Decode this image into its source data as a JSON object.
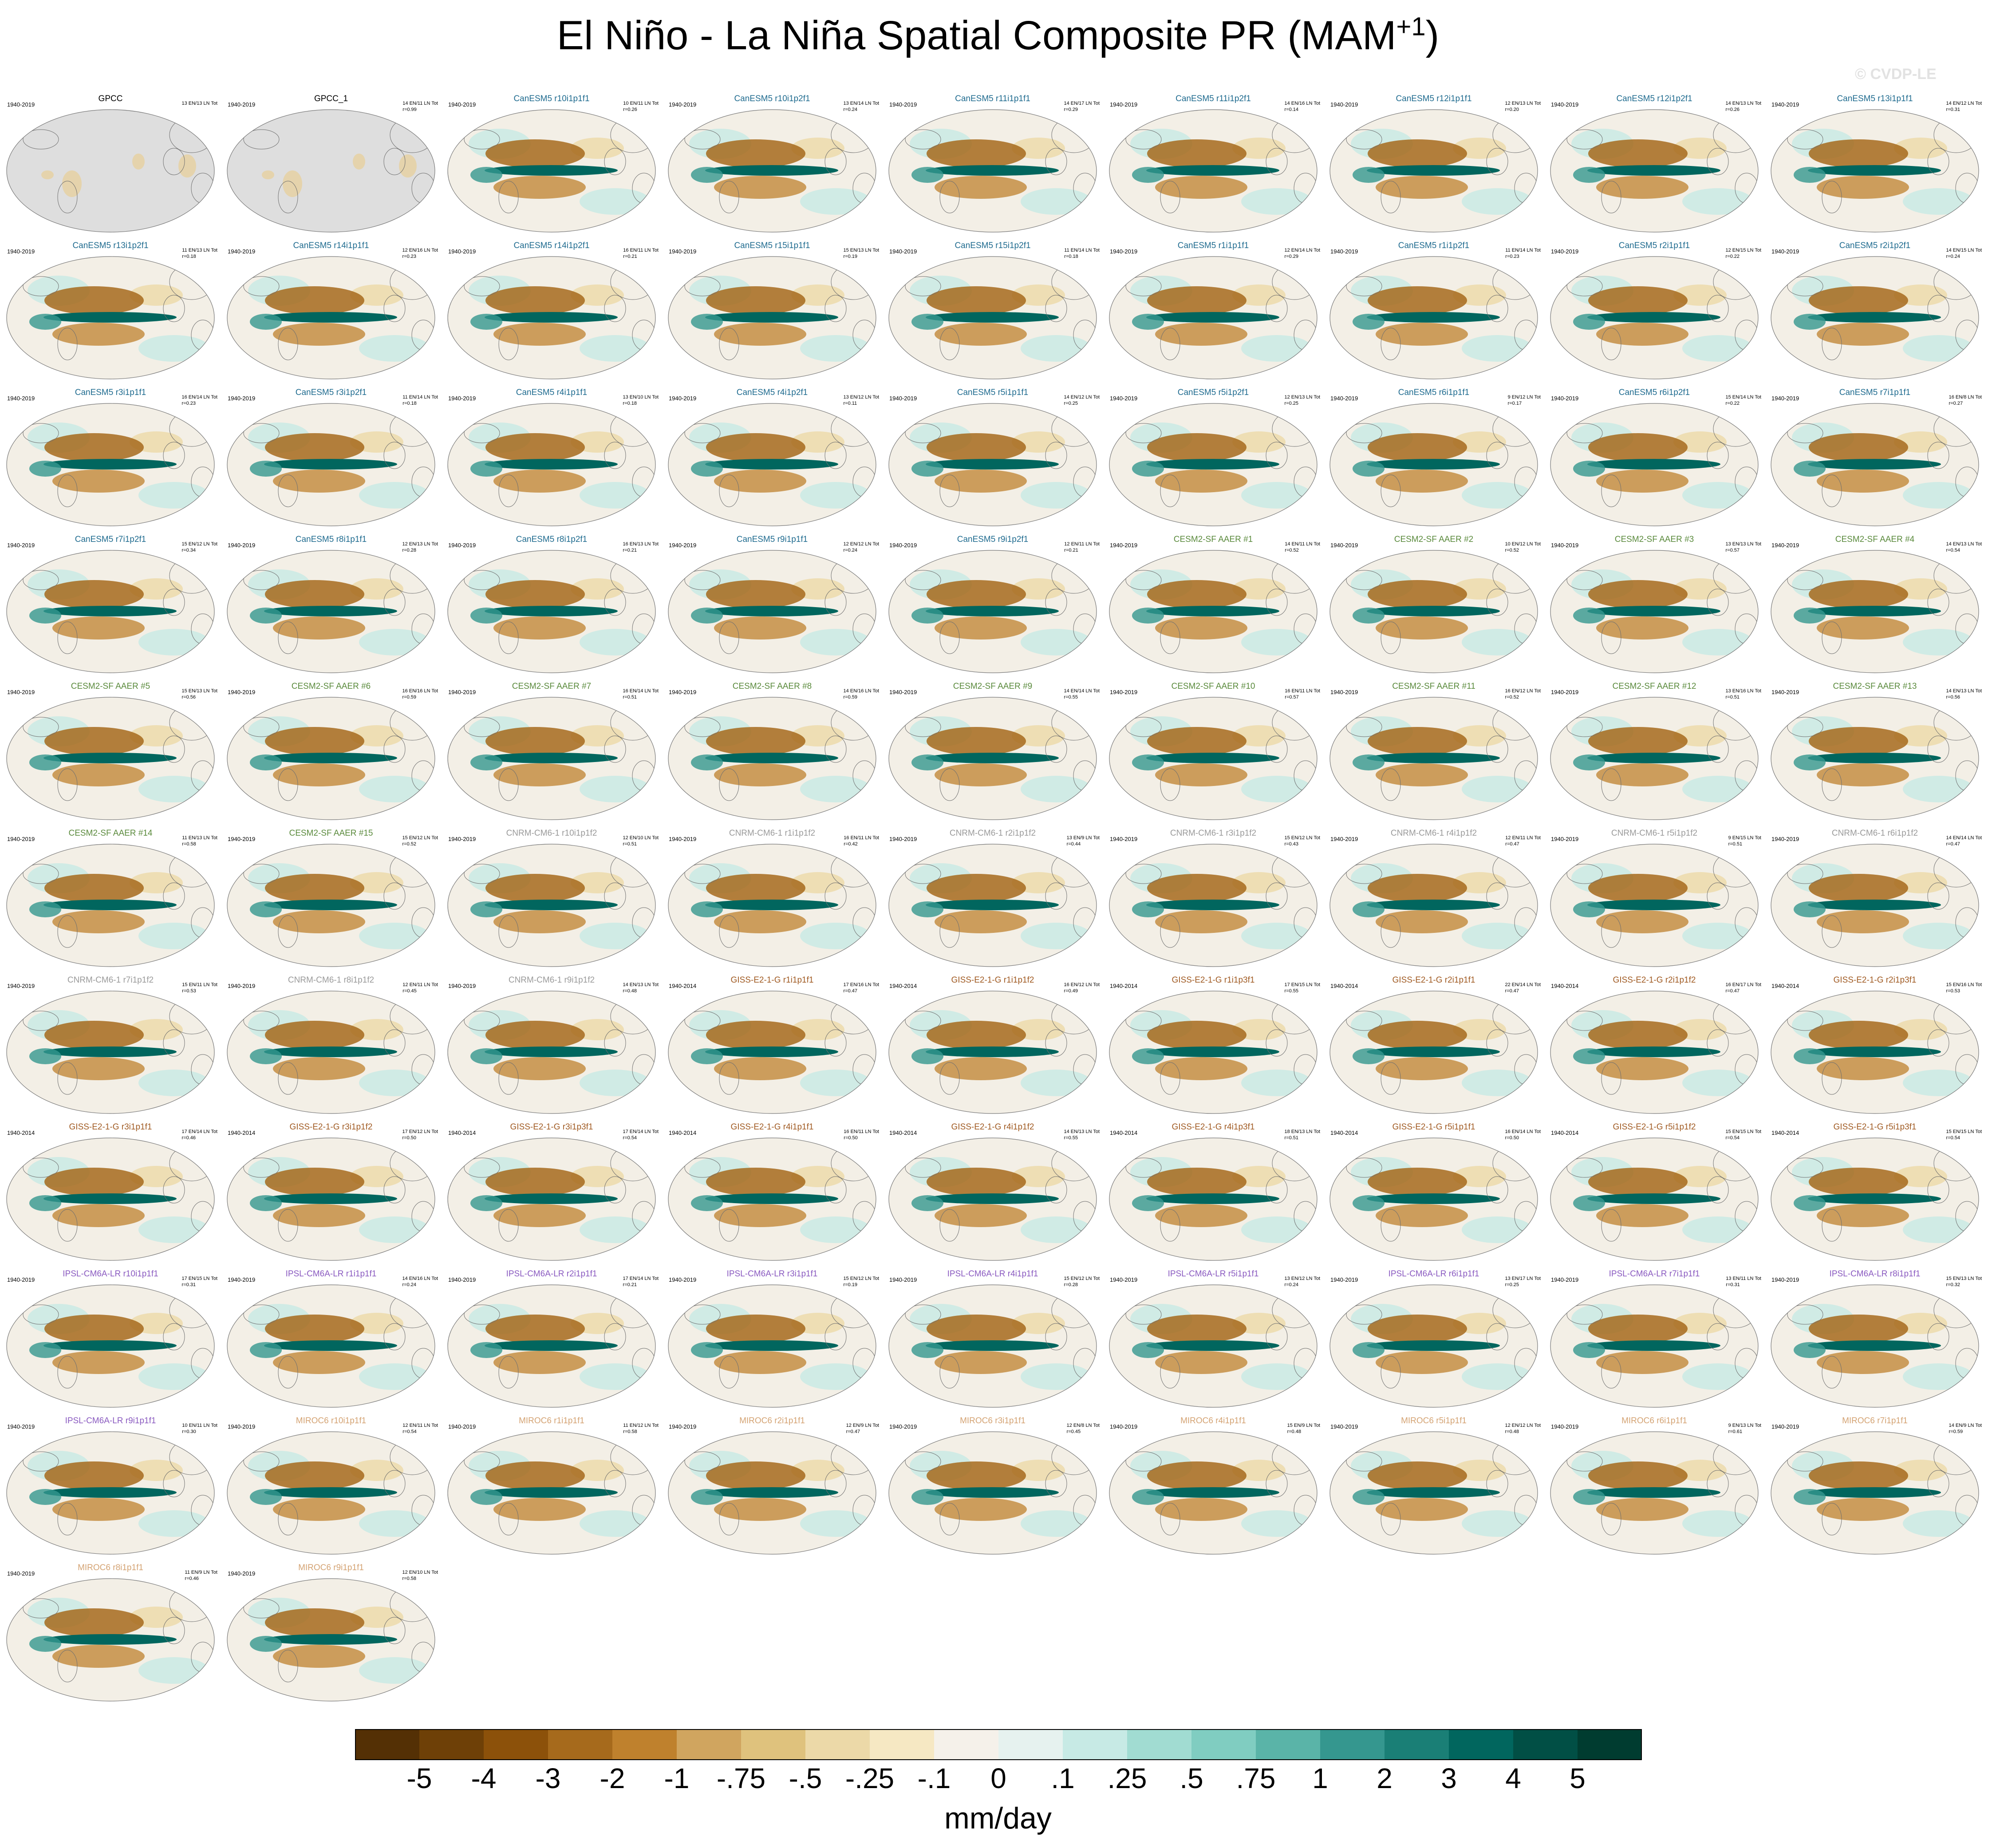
{
  "title": "El Niño - La Niña Spatial Composite PR (MAM",
  "title_sup": "+1",
  "title_end": ")",
  "watermark": "© CVDP-LE",
  "colors": {
    "GPCC": "#000000",
    "CanESM5": "#1f6b8f",
    "CESM2": "#5a8a3c",
    "CNRM": "#9a9a9a",
    "GISS": "#a05a22",
    "IPSL": "#8a5ac0",
    "MIROC6": "#d4a373"
  },
  "chart_data": {
    "type": "heatmap",
    "title": "El Niño - La Niña Spatial Composite PR (MAM+1)",
    "colorbar": {
      "labels": [
        "-5",
        "-4",
        "-3",
        "-2",
        "-1",
        "-.75",
        "-.5",
        "-.25",
        "-.1",
        "0",
        ".1",
        ".25",
        ".5",
        ".75",
        "1",
        "2",
        "3",
        "4",
        "5"
      ],
      "colors": [
        "#543005",
        "#6e4007",
        "#8c510a",
        "#a66a1c",
        "#bf812d",
        "#d0a55f",
        "#dfc27d",
        "#ecd9a8",
        "#f6e8c3",
        "#f5f1ea",
        "#e6f2ef",
        "#c7eae5",
        "#a1dcd2",
        "#80cdc1",
        "#5ab4a8",
        "#35978f",
        "#1a7f76",
        "#01665e",
        "#014f45",
        "#003c30"
      ],
      "units": "mm/day"
    },
    "panels": [
      {
        "title": "GPCC",
        "period": "1940-2019",
        "stats": [
          "13 EN/13 LN Tot",
          ""
        ],
        "group": "GPCC"
      },
      {
        "title": "GPCC_1",
        "period": "1940-2019",
        "stats": [
          "14 EN/11 LN Tot",
          "r=0.99"
        ],
        "group": "GPCC"
      },
      {
        "title": "CanESM5 r10i1p1f1",
        "period": "1940-2019",
        "stats": [
          "10 EN/11 LN Tot",
          "r=0.26"
        ],
        "group": "CanESM5"
      },
      {
        "title": "CanESM5 r10i1p2f1",
        "period": "1940-2019",
        "stats": [
          "13 EN/14 LN Tot",
          "r=0.24"
        ],
        "group": "CanESM5"
      },
      {
        "title": "CanESM5 r11i1p1f1",
        "period": "1940-2019",
        "stats": [
          "14 EN/17 LN Tot",
          "r=0.29"
        ],
        "group": "CanESM5"
      },
      {
        "title": "CanESM5 r11i1p2f1",
        "period": "1940-2019",
        "stats": [
          "14 EN/16 LN Tot",
          "r=0.14"
        ],
        "group": "CanESM5"
      },
      {
        "title": "CanESM5 r12i1p1f1",
        "period": "1940-2019",
        "stats": [
          "12 EN/13 LN Tot",
          "r=0.20"
        ],
        "group": "CanESM5"
      },
      {
        "title": "CanESM5 r12i1p2f1",
        "period": "1940-2019",
        "stats": [
          "14 EN/13 LN Tot",
          "r=0.26"
        ],
        "group": "CanESM5"
      },
      {
        "title": "CanESM5 r13i1p1f1",
        "period": "1940-2019",
        "stats": [
          "14 EN/12 LN Tot",
          "r=0.31"
        ],
        "group": "CanESM5"
      },
      {
        "title": "CanESM5 r13i1p2f1",
        "period": "1940-2019",
        "stats": [
          "11 EN/13 LN Tot",
          "r=0.18"
        ],
        "group": "CanESM5"
      },
      {
        "title": "CanESM5 r14i1p1f1",
        "period": "1940-2019",
        "stats": [
          "12 EN/16 LN Tot",
          "r=0.23"
        ],
        "group": "CanESM5"
      },
      {
        "title": "CanESM5 r14i1p2f1",
        "period": "1940-2019",
        "stats": [
          "16 EN/11 LN Tot",
          "r=0.21"
        ],
        "group": "CanESM5"
      },
      {
        "title": "CanESM5 r15i1p1f1",
        "period": "1940-2019",
        "stats": [
          "15 EN/13 LN Tot",
          "r=0.19"
        ],
        "group": "CanESM5"
      },
      {
        "title": "CanESM5 r15i1p2f1",
        "period": "1940-2019",
        "stats": [
          "11 EN/14 LN Tot",
          "r=0.18"
        ],
        "group": "CanESM5"
      },
      {
        "title": "CanESM5 r1i1p1f1",
        "period": "1940-2019",
        "stats": [
          "12 EN/14 LN Tot",
          "r=0.29"
        ],
        "group": "CanESM5"
      },
      {
        "title": "CanESM5 r1i1p2f1",
        "period": "1940-2019",
        "stats": [
          "11 EN/14 LN Tot",
          "r=0.23"
        ],
        "group": "CanESM5"
      },
      {
        "title": "CanESM5 r2i1p1f1",
        "period": "1940-2019",
        "stats": [
          "12 EN/15 LN Tot",
          "r=0.22"
        ],
        "group": "CanESM5"
      },
      {
        "title": "CanESM5 r2i1p2f1",
        "period": "1940-2019",
        "stats": [
          "14 EN/15 LN Tot",
          "r=0.24"
        ],
        "group": "CanESM5"
      },
      {
        "title": "CanESM5 r3i1p1f1",
        "period": "1940-2019",
        "stats": [
          "16 EN/14 LN Tot",
          "r=0.23"
        ],
        "group": "CanESM5"
      },
      {
        "title": "CanESM5 r3i1p2f1",
        "period": "1940-2019",
        "stats": [
          "11 EN/14 LN Tot",
          "r=0.18"
        ],
        "group": "CanESM5"
      },
      {
        "title": "CanESM5 r4i1p1f1",
        "period": "1940-2019",
        "stats": [
          "13 EN/10 LN Tot",
          "r=0.18"
        ],
        "group": "CanESM5"
      },
      {
        "title": "CanESM5 r4i1p2f1",
        "period": "1940-2019",
        "stats": [
          "13 EN/12 LN Tot",
          "r=0.11"
        ],
        "group": "CanESM5"
      },
      {
        "title": "CanESM5 r5i1p1f1",
        "period": "1940-2019",
        "stats": [
          "14 EN/12 LN Tot",
          "r=0.25"
        ],
        "group": "CanESM5"
      },
      {
        "title": "CanESM5 r5i1p2f1",
        "period": "1940-2019",
        "stats": [
          "12 EN/13 LN Tot",
          "r=0.25"
        ],
        "group": "CanESM5"
      },
      {
        "title": "CanESM5 r6i1p1f1",
        "period": "1940-2019",
        "stats": [
          "9 EN/12 LN Tot",
          "r=0.17"
        ],
        "group": "CanESM5"
      },
      {
        "title": "CanESM5 r6i1p2f1",
        "period": "1940-2019",
        "stats": [
          "15 EN/14 LN Tot",
          "r=0.22"
        ],
        "group": "CanESM5"
      },
      {
        "title": "CanESM5 r7i1p1f1",
        "period": "1940-2019",
        "stats": [
          "16 EN/8 LN Tot",
          "r=0.27"
        ],
        "group": "CanESM5"
      },
      {
        "title": "CanESM5 r7i1p2f1",
        "period": "1940-2019",
        "stats": [
          "15 EN/12 LN Tot",
          "r=0.34"
        ],
        "group": "CanESM5"
      },
      {
        "title": "CanESM5 r8i1p1f1",
        "period": "1940-2019",
        "stats": [
          "12 EN/13 LN Tot",
          "r=0.28"
        ],
        "group": "CanESM5"
      },
      {
        "title": "CanESM5 r8i1p2f1",
        "period": "1940-2019",
        "stats": [
          "16 EN/13 LN Tot",
          "r=0.21"
        ],
        "group": "CanESM5"
      },
      {
        "title": "CanESM5 r9i1p1f1",
        "period": "1940-2019",
        "stats": [
          "12 EN/12 LN Tot",
          "r=0.24"
        ],
        "group": "CanESM5"
      },
      {
        "title": "CanESM5 r9i1p2f1",
        "period": "1940-2019",
        "stats": [
          "12 EN/11 LN Tot",
          "r=0.21"
        ],
        "group": "CanESM5"
      },
      {
        "title": "CESM2-SF AAER #1",
        "period": "1940-2019",
        "stats": [
          "14 EN/11 LN Tot",
          "r=0.52"
        ],
        "group": "CESM2"
      },
      {
        "title": "CESM2-SF AAER #2",
        "period": "1940-2019",
        "stats": [
          "10 EN/12 LN Tot",
          "r=0.52"
        ],
        "group": "CESM2"
      },
      {
        "title": "CESM2-SF AAER #3",
        "period": "1940-2019",
        "stats": [
          "13 EN/13 LN Tot",
          "r=0.57"
        ],
        "group": "CESM2"
      },
      {
        "title": "CESM2-SF AAER #4",
        "period": "1940-2019",
        "stats": [
          "14 EN/13 LN Tot",
          "r=0.54"
        ],
        "group": "CESM2"
      },
      {
        "title": "CESM2-SF AAER #5",
        "period": "1940-2019",
        "stats": [
          "15 EN/13 LN Tot",
          "r=0.56"
        ],
        "group": "CESM2"
      },
      {
        "title": "CESM2-SF AAER #6",
        "period": "1940-2019",
        "stats": [
          "16 EN/16 LN Tot",
          "r=0.59"
        ],
        "group": "CESM2"
      },
      {
        "title": "CESM2-SF AAER #7",
        "period": "1940-2019",
        "stats": [
          "16 EN/14 LN Tot",
          "r=0.51"
        ],
        "group": "CESM2"
      },
      {
        "title": "CESM2-SF AAER #8",
        "period": "1940-2019",
        "stats": [
          "14 EN/16 LN Tot",
          "r=0.59"
        ],
        "group": "CESM2"
      },
      {
        "title": "CESM2-SF AAER #9",
        "period": "1940-2019",
        "stats": [
          "14 EN/14 LN Tot",
          "r=0.55"
        ],
        "group": "CESM2"
      },
      {
        "title": "CESM2-SF AAER #10",
        "period": "1940-2019",
        "stats": [
          "16 EN/11 LN Tot",
          "r=0.57"
        ],
        "group": "CESM2"
      },
      {
        "title": "CESM2-SF AAER #11",
        "period": "1940-2019",
        "stats": [
          "16 EN/12 LN Tot",
          "r=0.52"
        ],
        "group": "CESM2"
      },
      {
        "title": "CESM2-SF AAER #12",
        "period": "1940-2019",
        "stats": [
          "13 EN/16 LN Tot",
          "r=0.51"
        ],
        "group": "CESM2"
      },
      {
        "title": "CESM2-SF AAER #13",
        "period": "1940-2019",
        "stats": [
          "14 EN/13 LN Tot",
          "r=0.56"
        ],
        "group": "CESM2"
      },
      {
        "title": "CESM2-SF AAER #14",
        "period": "1940-2019",
        "stats": [
          "11 EN/13 LN Tot",
          "r=0.58"
        ],
        "group": "CESM2"
      },
      {
        "title": "CESM2-SF AAER #15",
        "period": "1940-2019",
        "stats": [
          "15 EN/12 LN Tot",
          "r=0.52"
        ],
        "group": "CESM2"
      },
      {
        "title": "CNRM-CM6-1 r10i1p1f2",
        "period": "1940-2019",
        "stats": [
          "12 EN/10 LN Tot",
          "r=0.51"
        ],
        "group": "CNRM"
      },
      {
        "title": "CNRM-CM6-1 r1i1p1f2",
        "period": "1940-2019",
        "stats": [
          "16 EN/11 LN Tot",
          "r=0.42"
        ],
        "group": "CNRM"
      },
      {
        "title": "CNRM-CM6-1 r2i1p1f2",
        "period": "1940-2019",
        "stats": [
          "13 EN/9 LN Tot",
          "r=0.44"
        ],
        "group": "CNRM"
      },
      {
        "title": "CNRM-CM6-1 r3i1p1f2",
        "period": "1940-2019",
        "stats": [
          "15 EN/12 LN Tot",
          "r=0.43"
        ],
        "group": "CNRM"
      },
      {
        "title": "CNRM-CM6-1 r4i1p1f2",
        "period": "1940-2019",
        "stats": [
          "12 EN/11 LN Tot",
          "r=0.47"
        ],
        "group": "CNRM"
      },
      {
        "title": "CNRM-CM6-1 r5i1p1f2",
        "period": "1940-2019",
        "stats": [
          "9 EN/15 LN Tot",
          "r=0.51"
        ],
        "group": "CNRM"
      },
      {
        "title": "CNRM-CM6-1 r6i1p1f2",
        "period": "1940-2019",
        "stats": [
          "14 EN/14 LN Tot",
          "r=0.47"
        ],
        "group": "CNRM"
      },
      {
        "title": "CNRM-CM6-1 r7i1p1f2",
        "period": "1940-2019",
        "stats": [
          "15 EN/11 LN Tot",
          "r=0.53"
        ],
        "group": "CNRM"
      },
      {
        "title": "CNRM-CM6-1 r8i1p1f2",
        "period": "1940-2019",
        "stats": [
          "12 EN/11 LN Tot",
          "r=0.45"
        ],
        "group": "CNRM"
      },
      {
        "title": "CNRM-CM6-1 r9i1p1f2",
        "period": "1940-2019",
        "stats": [
          "14 EN/13 LN Tot",
          "r=0.48"
        ],
        "group": "CNRM"
      },
      {
        "title": "GISS-E2-1-G r1i1p1f1",
        "period": "1940-2014",
        "stats": [
          "17 EN/16 LN Tot",
          "r=0.47"
        ],
        "group": "GISS"
      },
      {
        "title": "GISS-E2-1-G r1i1p1f2",
        "period": "1940-2014",
        "stats": [
          "16 EN/12 LN Tot",
          "r=0.49"
        ],
        "group": "GISS"
      },
      {
        "title": "GISS-E2-1-G r1i1p3f1",
        "period": "1940-2014",
        "stats": [
          "17 EN/15 LN Tot",
          "r=0.55"
        ],
        "group": "GISS"
      },
      {
        "title": "GISS-E2-1-G r2i1p1f1",
        "period": "1940-2014",
        "stats": [
          "22 EN/14 LN Tot",
          "r=0.47"
        ],
        "group": "GISS"
      },
      {
        "title": "GISS-E2-1-G r2i1p1f2",
        "period": "1940-2014",
        "stats": [
          "16 EN/17 LN Tot",
          "r=0.47"
        ],
        "group": "GISS"
      },
      {
        "title": "GISS-E2-1-G r2i1p3f1",
        "period": "1940-2014",
        "stats": [
          "15 EN/16 LN Tot",
          "r=0.53"
        ],
        "group": "GISS"
      },
      {
        "title": "GISS-E2-1-G r3i1p1f1",
        "period": "1940-2014",
        "stats": [
          "17 EN/14 LN Tot",
          "r=0.46"
        ],
        "group": "GISS"
      },
      {
        "title": "GISS-E2-1-G r3i1p1f2",
        "period": "1940-2014",
        "stats": [
          "17 EN/12 LN Tot",
          "r=0.50"
        ],
        "group": "GISS"
      },
      {
        "title": "GISS-E2-1-G r3i1p3f1",
        "period": "1940-2014",
        "stats": [
          "17 EN/14 LN Tot",
          "r=0.54"
        ],
        "group": "GISS"
      },
      {
        "title": "GISS-E2-1-G r4i1p1f1",
        "period": "1940-2014",
        "stats": [
          "16 EN/11 LN Tot",
          "r=0.50"
        ],
        "group": "GISS"
      },
      {
        "title": "GISS-E2-1-G r4i1p1f2",
        "period": "1940-2014",
        "stats": [
          "14 EN/13 LN Tot",
          "r=0.55"
        ],
        "group": "GISS"
      },
      {
        "title": "GISS-E2-1-G r4i1p3f1",
        "period": "1940-2014",
        "stats": [
          "18 EN/13 LN Tot",
          "r=0.51"
        ],
        "group": "GISS"
      },
      {
        "title": "GISS-E2-1-G r5i1p1f1",
        "period": "1940-2014",
        "stats": [
          "16 EN/14 LN Tot",
          "r=0.50"
        ],
        "group": "GISS"
      },
      {
        "title": "GISS-E2-1-G r5i1p1f2",
        "period": "1940-2014",
        "stats": [
          "15 EN/15 LN Tot",
          "r=0.54"
        ],
        "group": "GISS"
      },
      {
        "title": "GISS-E2-1-G r5i1p3f1",
        "period": "1940-2014",
        "stats": [
          "15 EN/15 LN Tot",
          "r=0.54"
        ],
        "group": "GISS"
      },
      {
        "title": "IPSL-CM6A-LR r10i1p1f1",
        "period": "1940-2019",
        "stats": [
          "17 EN/15 LN Tot",
          "r=0.31"
        ],
        "group": "IPSL"
      },
      {
        "title": "IPSL-CM6A-LR r1i1p1f1",
        "period": "1940-2019",
        "stats": [
          "14 EN/16 LN Tot",
          "r=0.24"
        ],
        "group": "IPSL"
      },
      {
        "title": "IPSL-CM6A-LR r2i1p1f1",
        "period": "1940-2019",
        "stats": [
          "17 EN/14 LN Tot",
          "r=0.21"
        ],
        "group": "IPSL"
      },
      {
        "title": "IPSL-CM6A-LR r3i1p1f1",
        "period": "1940-2019",
        "stats": [
          "15 EN/12 LN Tot",
          "r=0.19"
        ],
        "group": "IPSL"
      },
      {
        "title": "IPSL-CM6A-LR r4i1p1f1",
        "period": "1940-2019",
        "stats": [
          "15 EN/12 LN Tot",
          "r=0.28"
        ],
        "group": "IPSL"
      },
      {
        "title": "IPSL-CM6A-LR r5i1p1f1",
        "period": "1940-2019",
        "stats": [
          "13 EN/12 LN Tot",
          "r=0.24"
        ],
        "group": "IPSL"
      },
      {
        "title": "IPSL-CM6A-LR r6i1p1f1",
        "period": "1940-2019",
        "stats": [
          "13 EN/17 LN Tot",
          "r=0.25"
        ],
        "group": "IPSL"
      },
      {
        "title": "IPSL-CM6A-LR r7i1p1f1",
        "period": "1940-2019",
        "stats": [
          "13 EN/11 LN Tot",
          "r=0.31"
        ],
        "group": "IPSL"
      },
      {
        "title": "IPSL-CM6A-LR r8i1p1f1",
        "period": "1940-2019",
        "stats": [
          "15 EN/13 LN Tot",
          "r=0.32"
        ],
        "group": "IPSL"
      },
      {
        "title": "IPSL-CM6A-LR r9i1p1f1",
        "period": "1940-2019",
        "stats": [
          "10 EN/11 LN Tot",
          "r=0.30"
        ],
        "group": "IPSL"
      },
      {
        "title": "MIROC6 r10i1p1f1",
        "period": "1940-2019",
        "stats": [
          "12 EN/11 LN Tot",
          "r=0.54"
        ],
        "group": "MIROC6"
      },
      {
        "title": "MIROC6 r1i1p1f1",
        "period": "1940-2019",
        "stats": [
          "11 EN/12 LN Tot",
          "r=0.58"
        ],
        "group": "MIROC6"
      },
      {
        "title": "MIROC6 r2i1p1f1",
        "period": "1940-2019",
        "stats": [
          "12 EN/9 LN Tot",
          "r=0.47"
        ],
        "group": "MIROC6"
      },
      {
        "title": "MIROC6 r3i1p1f1",
        "period": "1940-2019",
        "stats": [
          "12 EN/8 LN Tot",
          "r=0.45"
        ],
        "group": "MIROC6"
      },
      {
        "title": "MIROC6 r4i1p1f1",
        "period": "1940-2019",
        "stats": [
          "15 EN/9 LN Tot",
          "r=0.48"
        ],
        "group": "MIROC6"
      },
      {
        "title": "MIROC6 r5i1p1f1",
        "period": "1940-2019",
        "stats": [
          "12 EN/12 LN Tot",
          "r=0.48"
        ],
        "group": "MIROC6"
      },
      {
        "title": "MIROC6 r6i1p1f1",
        "period": "1940-2019",
        "stats": [
          "9 EN/13 LN Tot",
          "r=0.61"
        ],
        "group": "MIROC6"
      },
      {
        "title": "MIROC6 r7i1p1f1",
        "period": "1940-2019",
        "stats": [
          "14 EN/9 LN Tot",
          "r=0.59"
        ],
        "group": "MIROC6"
      },
      {
        "title": "MIROC6 r8i1p1f1",
        "period": "1940-2019",
        "stats": [
          "11 EN/9 LN Tot",
          "r=0.46"
        ],
        "group": "MIROC6"
      },
      {
        "title": "MIROC6 r9i1p1f1",
        "period": "1940-2019",
        "stats": [
          "12 EN/10 LN Tot",
          "r=0.58"
        ],
        "group": "MIROC6"
      }
    ]
  }
}
